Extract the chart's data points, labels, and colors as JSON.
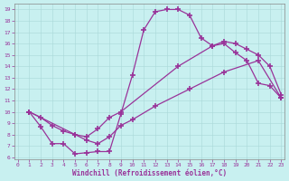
{
  "xlabel": "Windchill (Refroidissement éolien,°C)",
  "bg_color": "#c8f0f0",
  "line_color": "#993399",
  "xlim": [
    -0.3,
    23.3
  ],
  "ylim": [
    5.8,
    19.5
  ],
  "xticks": [
    0,
    1,
    2,
    3,
    4,
    5,
    6,
    7,
    8,
    9,
    10,
    11,
    12,
    13,
    14,
    15,
    16,
    17,
    18,
    19,
    20,
    21,
    22,
    23
  ],
  "yticks": [
    6,
    7,
    8,
    9,
    10,
    11,
    12,
    13,
    14,
    15,
    16,
    17,
    18,
    19
  ],
  "curve1_x": [
    1,
    2,
    3,
    4,
    5,
    6,
    7,
    8,
    9,
    10,
    11,
    12,
    13,
    14,
    15,
    16,
    17,
    18,
    19,
    20,
    21,
    22,
    23
  ],
  "curve1_y": [
    10.0,
    8.7,
    7.2,
    7.2,
    6.3,
    6.4,
    6.5,
    6.5,
    9.8,
    13.2,
    17.2,
    18.8,
    19.0,
    19.0,
    18.5,
    16.5,
    15.8,
    16.0,
    15.2,
    14.5,
    12.5,
    12.3,
    11.2
  ],
  "curve2_x": [
    1,
    2,
    3,
    4,
    5,
    6,
    7,
    8,
    9,
    14,
    17,
    18,
    19,
    20,
    21,
    22,
    23
  ],
  "curve2_y": [
    10.0,
    9.5,
    8.8,
    8.3,
    8.0,
    7.8,
    8.5,
    9.5,
    10.0,
    14.0,
    15.8,
    16.2,
    16.0,
    15.5,
    15.0,
    14.0,
    11.5
  ],
  "curve3_x": [
    1,
    5,
    6,
    7,
    8,
    9,
    10,
    12,
    15,
    18,
    21,
    23
  ],
  "curve3_y": [
    10.0,
    8.0,
    7.5,
    7.2,
    7.8,
    8.8,
    9.3,
    10.5,
    12.0,
    13.5,
    14.5,
    11.2
  ],
  "figsize": [
    3.2,
    2.0
  ],
  "dpi": 100
}
